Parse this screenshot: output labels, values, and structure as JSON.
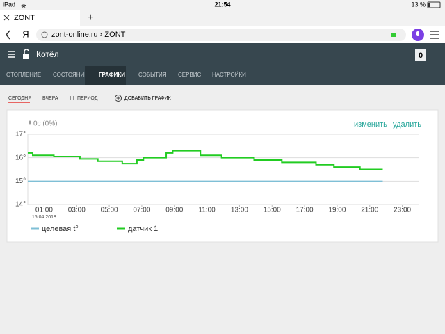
{
  "status_bar": {
    "device": "iPad",
    "time": "21:54",
    "battery": "13 %"
  },
  "browser": {
    "tab_title": "ZONT",
    "new_tab": "+",
    "search_logo": "Я",
    "url": "zont-online.ru › ZONT"
  },
  "app": {
    "title": "Котёл",
    "badge": "0",
    "nav": [
      "ОТОПЛЕНИЕ",
      "СОСТОЯНИЕ",
      "ГРАФИКИ",
      "СОБЫТИЯ",
      "СЕРВИС",
      "НАСТРОЙКИ"
    ],
    "active_nav": 2,
    "periods": [
      "СЕГОДНЯ",
      "ВЧЕРА",
      "ПЕРИОД"
    ],
    "active_period": 0,
    "add_chart": "ДОБАВИТЬ ГРАФИК"
  },
  "card": {
    "consumption": "0с (0%)",
    "edit": "изменить",
    "delete": "удалить"
  },
  "chart_data": {
    "type": "line",
    "x_sublabel": "15.04.2018",
    "xlim": [
      0,
      24
    ],
    "ylim": [
      14,
      17
    ],
    "xticks": [
      {
        "value": 1,
        "label": "01:00"
      },
      {
        "value": 3,
        "label": "03:00"
      },
      {
        "value": 5,
        "label": "05:00"
      },
      {
        "value": 7,
        "label": "07:00"
      },
      {
        "value": 9,
        "label": "09:00"
      },
      {
        "value": 11,
        "label": "11:00"
      },
      {
        "value": 13,
        "label": "13:00"
      },
      {
        "value": 15,
        "label": "15:00"
      },
      {
        "value": 17,
        "label": "17:00"
      },
      {
        "value": 19,
        "label": "19:00"
      },
      {
        "value": 21,
        "label": "21:00"
      },
      {
        "value": 23,
        "label": "23:00"
      }
    ],
    "yticks": [
      {
        "value": 14,
        "label": "14°"
      },
      {
        "value": 15,
        "label": "15°"
      },
      {
        "value": 16,
        "label": "16°"
      },
      {
        "value": 17,
        "label": "17°"
      }
    ],
    "grid": true,
    "series": [
      {
        "name": "целевая t°",
        "color": "#7fbfd6",
        "x": [
          0,
          21.8
        ],
        "values": [
          15,
          15
        ]
      },
      {
        "name": "датчик 1",
        "color": "#22cc22",
        "x": [
          0,
          0.3,
          0.3,
          1.6,
          1.6,
          3.2,
          3.2,
          4.3,
          4.3,
          5.8,
          5.8,
          6.7,
          6.7,
          7.1,
          7.1,
          8.5,
          8.5,
          8.9,
          8.9,
          10.6,
          10.6,
          11.9,
          11.9,
          13.9,
          13.9,
          15.6,
          15.6,
          17.7,
          17.7,
          18.8,
          18.8,
          20.4,
          20.4,
          21.8
        ],
        "values": [
          16.2,
          16.2,
          16.1,
          16.1,
          16.05,
          16.05,
          15.95,
          15.95,
          15.85,
          15.85,
          15.75,
          15.75,
          15.9,
          15.9,
          16,
          16,
          16.2,
          16.2,
          16.3,
          16.3,
          16.1,
          16.1,
          16,
          16,
          15.9,
          15.9,
          15.8,
          15.8,
          15.7,
          15.7,
          15.6,
          15.6,
          15.5,
          15.5
        ]
      }
    ]
  }
}
